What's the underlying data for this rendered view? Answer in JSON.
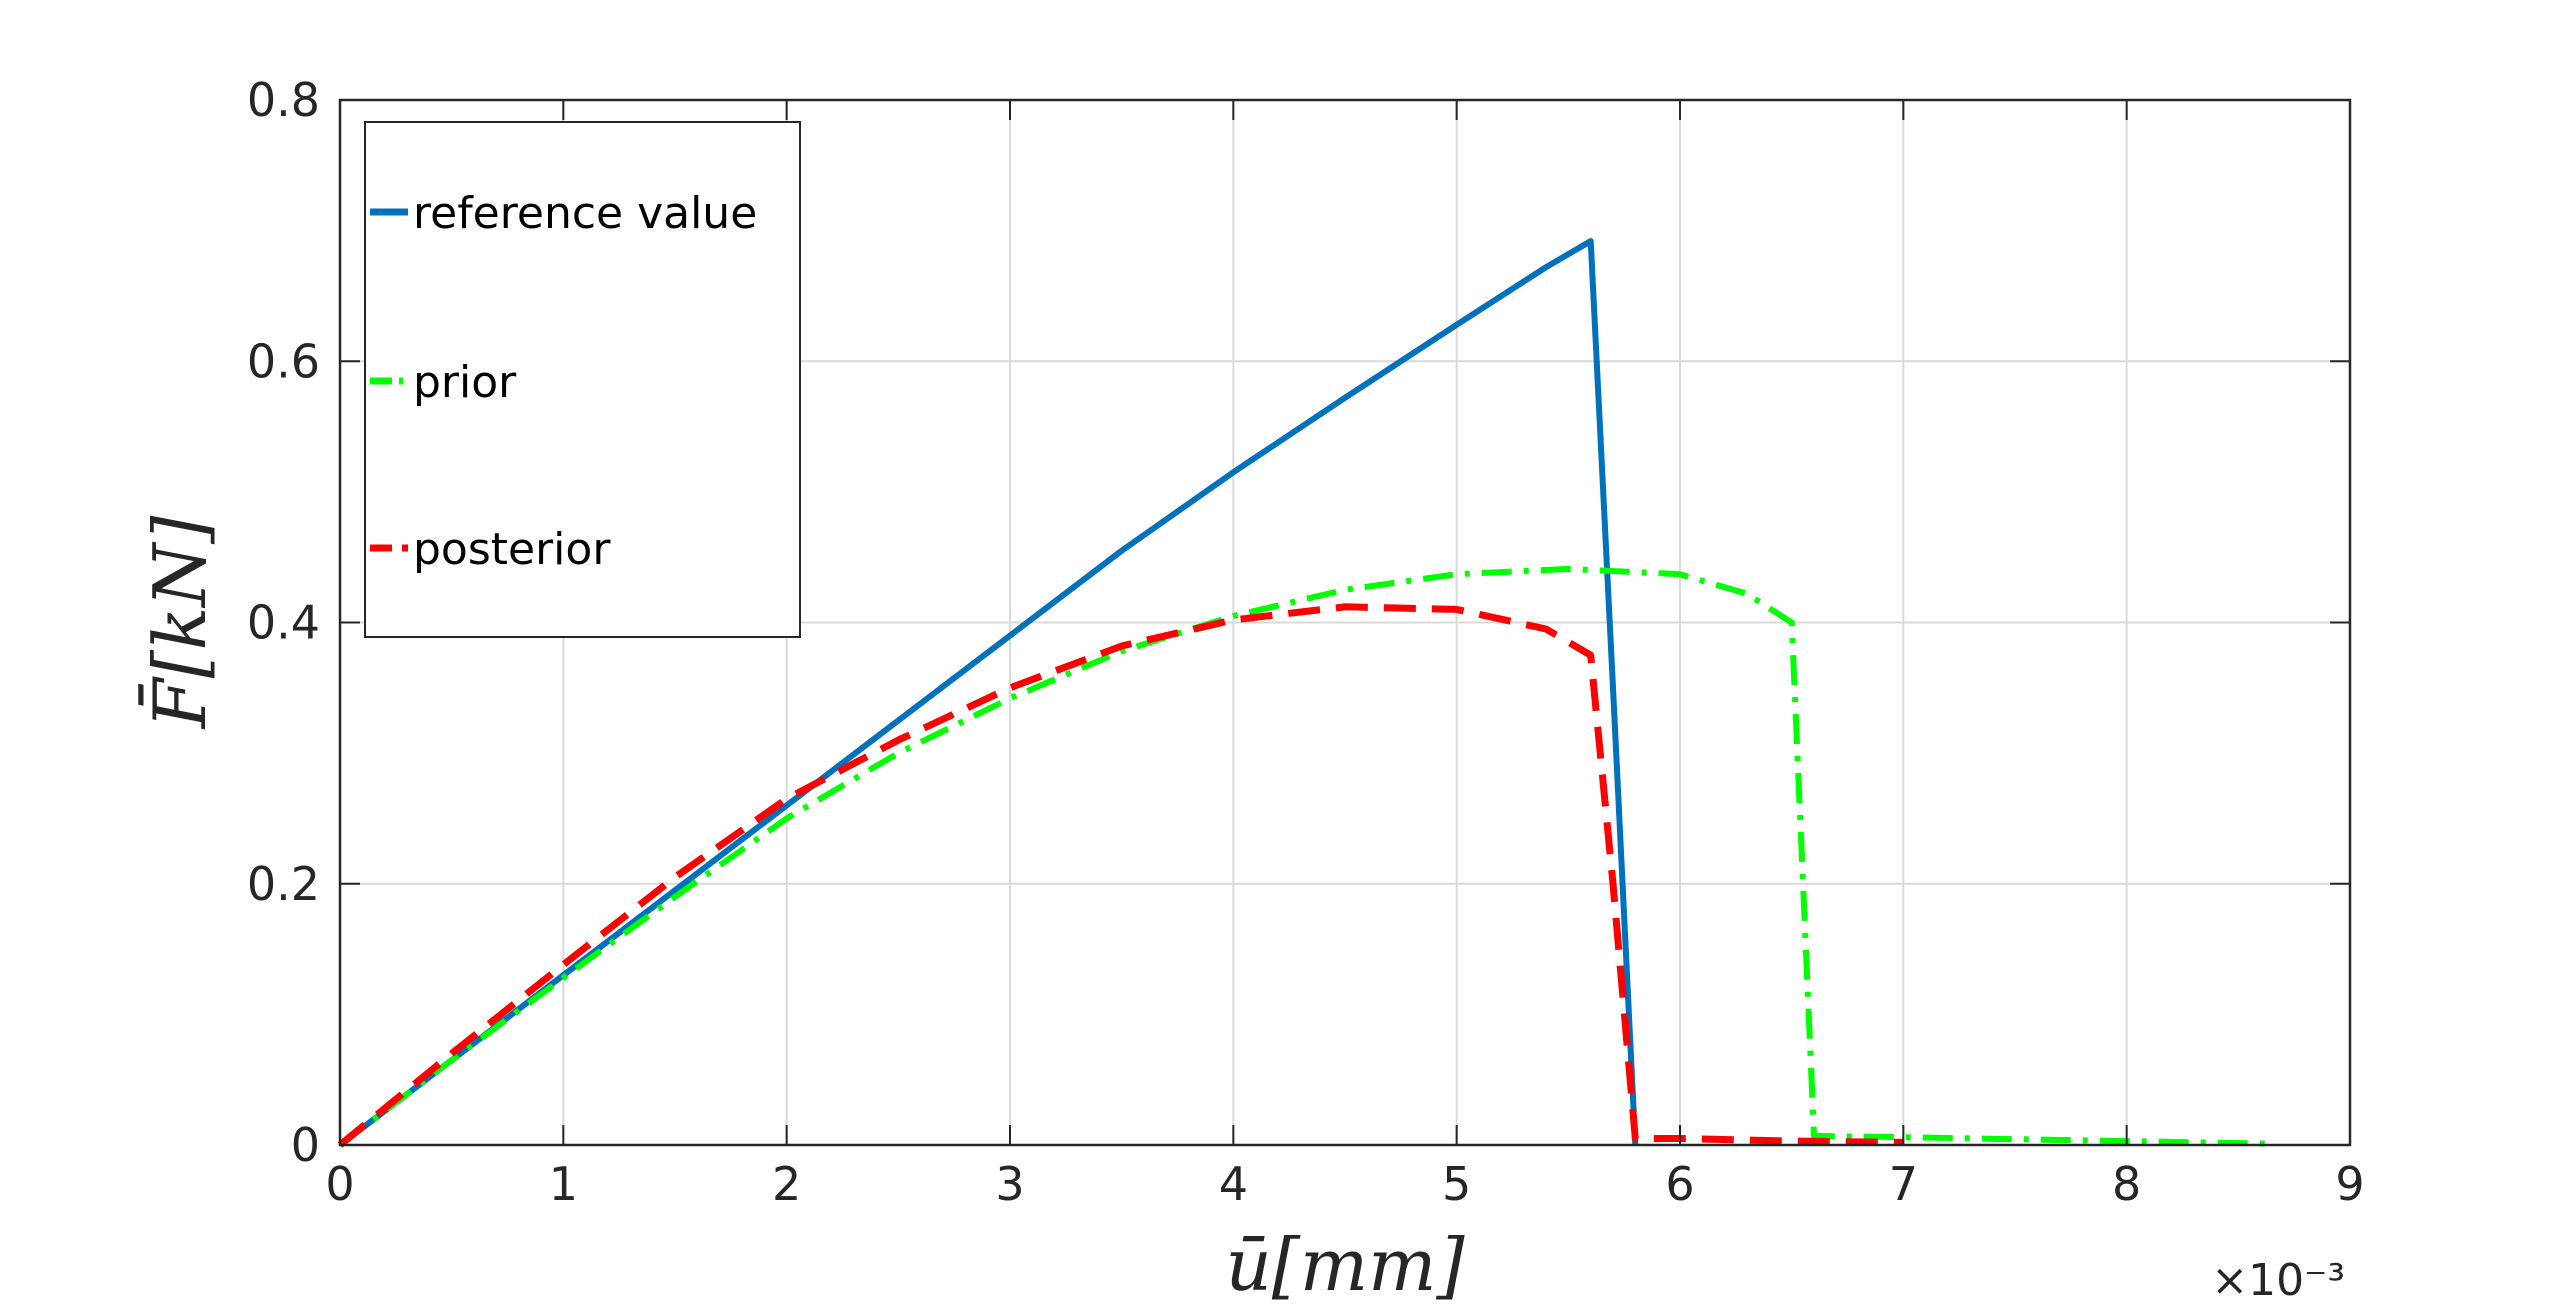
{
  "chart_data": {
    "type": "line",
    "title": "",
    "xlabel": "ū[mm]",
    "ylabel": "F̄[kN]",
    "x_exponent_label": "×10⁻³",
    "xlim": [
      0,
      9
    ],
    "ylim": [
      0,
      0.8
    ],
    "xticks": [
      "0",
      "1",
      "2",
      "3",
      "4",
      "5",
      "6",
      "7",
      "8",
      "9"
    ],
    "yticks": [
      "0",
      "0.2",
      "0.4",
      "0.6",
      "0.8"
    ],
    "grid": true,
    "legend_position": "top-left",
    "series": [
      {
        "name": "reference value",
        "color": "#0072BD",
        "style": "solid",
        "x": [
          0,
          0.5,
          1.0,
          1.5,
          2.0,
          2.5,
          3.0,
          3.5,
          4.0,
          4.5,
          5.0,
          5.4,
          5.55,
          5.6,
          5.7,
          5.8
        ],
        "y": [
          0,
          0.065,
          0.13,
          0.195,
          0.26,
          0.325,
          0.39,
          0.455,
          0.515,
          0.572,
          0.628,
          0.672,
          0.687,
          0.692,
          0.35,
          0.0
        ]
      },
      {
        "name": "prior",
        "color": "#00FF00",
        "style": "dashdot",
        "x": [
          0,
          0.5,
          1.0,
          1.5,
          2.0,
          2.5,
          3.0,
          3.5,
          4.0,
          4.5,
          5.0,
          5.5,
          6.0,
          6.3,
          6.5,
          6.6,
          7.0,
          8.0,
          8.65
        ],
        "y": [
          0,
          0.065,
          0.128,
          0.19,
          0.25,
          0.3,
          0.342,
          0.378,
          0.405,
          0.425,
          0.437,
          0.441,
          0.437,
          0.422,
          0.4,
          0.007,
          0.006,
          0.003,
          0.001
        ]
      },
      {
        "name": "posterior",
        "color": "#FF0000",
        "style": "dashed",
        "x": [
          0,
          0.5,
          1.0,
          1.5,
          2.0,
          2.5,
          3.0,
          3.5,
          4.0,
          4.5,
          5.0,
          5.4,
          5.6,
          5.7,
          5.8,
          6.0,
          6.5,
          7.0
        ],
        "y": [
          0,
          0.07,
          0.138,
          0.205,
          0.265,
          0.31,
          0.35,
          0.382,
          0.402,
          0.412,
          0.41,
          0.395,
          0.375,
          0.2,
          0.005,
          0.005,
          0.003,
          0.002
        ]
      }
    ]
  }
}
